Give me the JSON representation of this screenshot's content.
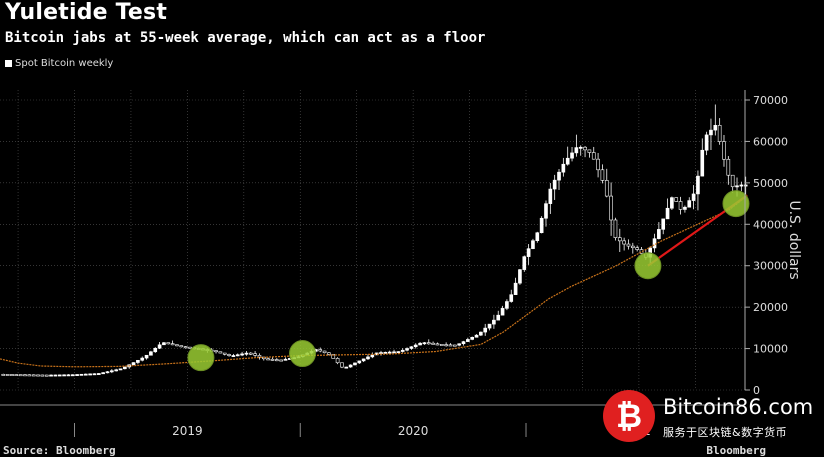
{
  "chart_data": {
    "type": "candlestick",
    "title": "Yuletide Test",
    "subtitle": "Bitcoin jabs at 55-week average, which can act as a floor",
    "legend": [
      "Spot Bitcoin weekly"
    ],
    "ylabel": "U.S. dollars",
    "ylim": [
      0,
      70000
    ],
    "y_ticks": [
      "0",
      "10000",
      "20000",
      "30000",
      "40000",
      "50000",
      "60000",
      "70000"
    ],
    "x_ticks": [
      "2019",
      "2020",
      "2021"
    ],
    "x_range": [
      2018.67,
      2021.97
    ],
    "price_path": [
      [
        2018.67,
        3800
      ],
      [
        2018.88,
        3600
      ],
      [
        2019.0,
        3700
      ],
      [
        2019.12,
        4000
      ],
      [
        2019.22,
        5200
      ],
      [
        2019.32,
        8000
      ],
      [
        2019.4,
        11500
      ],
      [
        2019.48,
        10500
      ],
      [
        2019.55,
        10000
      ],
      [
        2019.62,
        9500
      ],
      [
        2019.7,
        8200
      ],
      [
        2019.78,
        9000
      ],
      [
        2019.85,
        7500
      ],
      [
        2019.92,
        7200
      ],
      [
        2020.0,
        8000
      ],
      [
        2020.08,
        9800
      ],
      [
        2020.14,
        8500
      ],
      [
        2020.2,
        5200
      ],
      [
        2020.27,
        7000
      ],
      [
        2020.35,
        9000
      ],
      [
        2020.45,
        9300
      ],
      [
        2020.55,
        11500
      ],
      [
        2020.62,
        11000
      ],
      [
        2020.7,
        10800
      ],
      [
        2020.8,
        13500
      ],
      [
        2020.88,
        17500
      ],
      [
        2020.95,
        23500
      ],
      [
        2021.0,
        32000
      ],
      [
        2021.06,
        38000
      ],
      [
        2021.12,
        49000
      ],
      [
        2021.18,
        55000
      ],
      [
        2021.24,
        59000
      ],
      [
        2021.3,
        57000
      ],
      [
        2021.36,
        49000
      ],
      [
        2021.4,
        37000
      ],
      [
        2021.45,
        35000
      ],
      [
        2021.5,
        34000
      ],
      [
        2021.54,
        32000
      ],
      [
        2021.6,
        39000
      ],
      [
        2021.66,
        47000
      ],
      [
        2021.7,
        43000
      ],
      [
        2021.76,
        48000
      ],
      [
        2021.8,
        61000
      ],
      [
        2021.85,
        64000
      ],
      [
        2021.88,
        57000
      ],
      [
        2021.92,
        49000
      ],
      [
        2021.96,
        49500
      ]
    ],
    "moving_average": {
      "name": "55-week average",
      "points": [
        [
          2018.67,
          7500
        ],
        [
          2018.75,
          6500
        ],
        [
          2018.85,
          5800
        ],
        [
          2019.0,
          5600
        ],
        [
          2019.2,
          5700
        ],
        [
          2019.4,
          6300
        ],
        [
          2019.6,
          7000
        ],
        [
          2019.8,
          7800
        ],
        [
          2020.0,
          8300
        ],
        [
          2020.2,
          8500
        ],
        [
          2020.4,
          8700
        ],
        [
          2020.6,
          9300
        ],
        [
          2020.8,
          11000
        ],
        [
          2020.9,
          14000
        ],
        [
          2021.0,
          18000
        ],
        [
          2021.1,
          22000
        ],
        [
          2021.2,
          25000
        ],
        [
          2021.3,
          27500
        ],
        [
          2021.4,
          30000
        ],
        [
          2021.5,
          33000
        ],
        [
          2021.6,
          36000
        ],
        [
          2021.7,
          38500
        ],
        [
          2021.8,
          41000
        ],
        [
          2021.9,
          43500
        ],
        [
          2021.97,
          46500
        ]
      ]
    },
    "trend_line": [
      [
        2021.54,
        30000
      ],
      [
        2021.98,
        47000
      ]
    ],
    "highlight_points": [
      [
        2019.56,
        7800
      ],
      [
        2020.01,
        8800
      ],
      [
        2021.54,
        30000
      ],
      [
        2021.93,
        45000
      ]
    ]
  },
  "source": "Source: Bloomberg",
  "brand": "Bloomberg",
  "watermark": {
    "symbol": "₿",
    "title": "Bitcoin86.com",
    "subtitle": "服务于区块链&数字货币"
  },
  "colors": {
    "candle": "#ffffff",
    "moving_average": "#c8721a",
    "trend_line": "#e01818",
    "highlight": "#9acd32",
    "grid": "#555555"
  }
}
